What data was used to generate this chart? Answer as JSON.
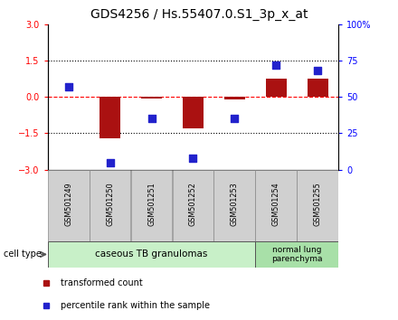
{
  "title": "GDS4256 / Hs.55407.0.S1_3p_x_at",
  "samples": [
    "GSM501249",
    "GSM501250",
    "GSM501251",
    "GSM501252",
    "GSM501253",
    "GSM501254",
    "GSM501255"
  ],
  "transformed_count": [
    0.02,
    -1.72,
    -0.08,
    -1.3,
    -0.12,
    0.75,
    0.75
  ],
  "percentile_rank": [
    57,
    5,
    35,
    8,
    35,
    72,
    68
  ],
  "ylim_left": [
    -3,
    3
  ],
  "ylim_right": [
    0,
    100
  ],
  "yticks_left": [
    -3,
    -1.5,
    0,
    1.5,
    3
  ],
  "yticks_right": [
    0,
    25,
    50,
    75,
    100
  ],
  "ytick_labels_right": [
    "0",
    "25",
    "50",
    "75",
    "100%"
  ],
  "bar_color": "#aa1111",
  "dot_color": "#2222cc",
  "group1_label": "caseous TB granulomas",
  "group2_label": "normal lung\nparenchyma",
  "group1_color": "#c8f0c8",
  "group2_color": "#a8e0a8",
  "cell_type_label": "cell type",
  "legend_red_label": "transformed count",
  "legend_blue_label": "percentile rank within the sample",
  "title_fontsize": 10,
  "tick_fontsize": 7,
  "bar_width": 0.5,
  "dot_size": 30,
  "sample_box_color": "#d0d0d0",
  "sample_box_edge": "#888888"
}
